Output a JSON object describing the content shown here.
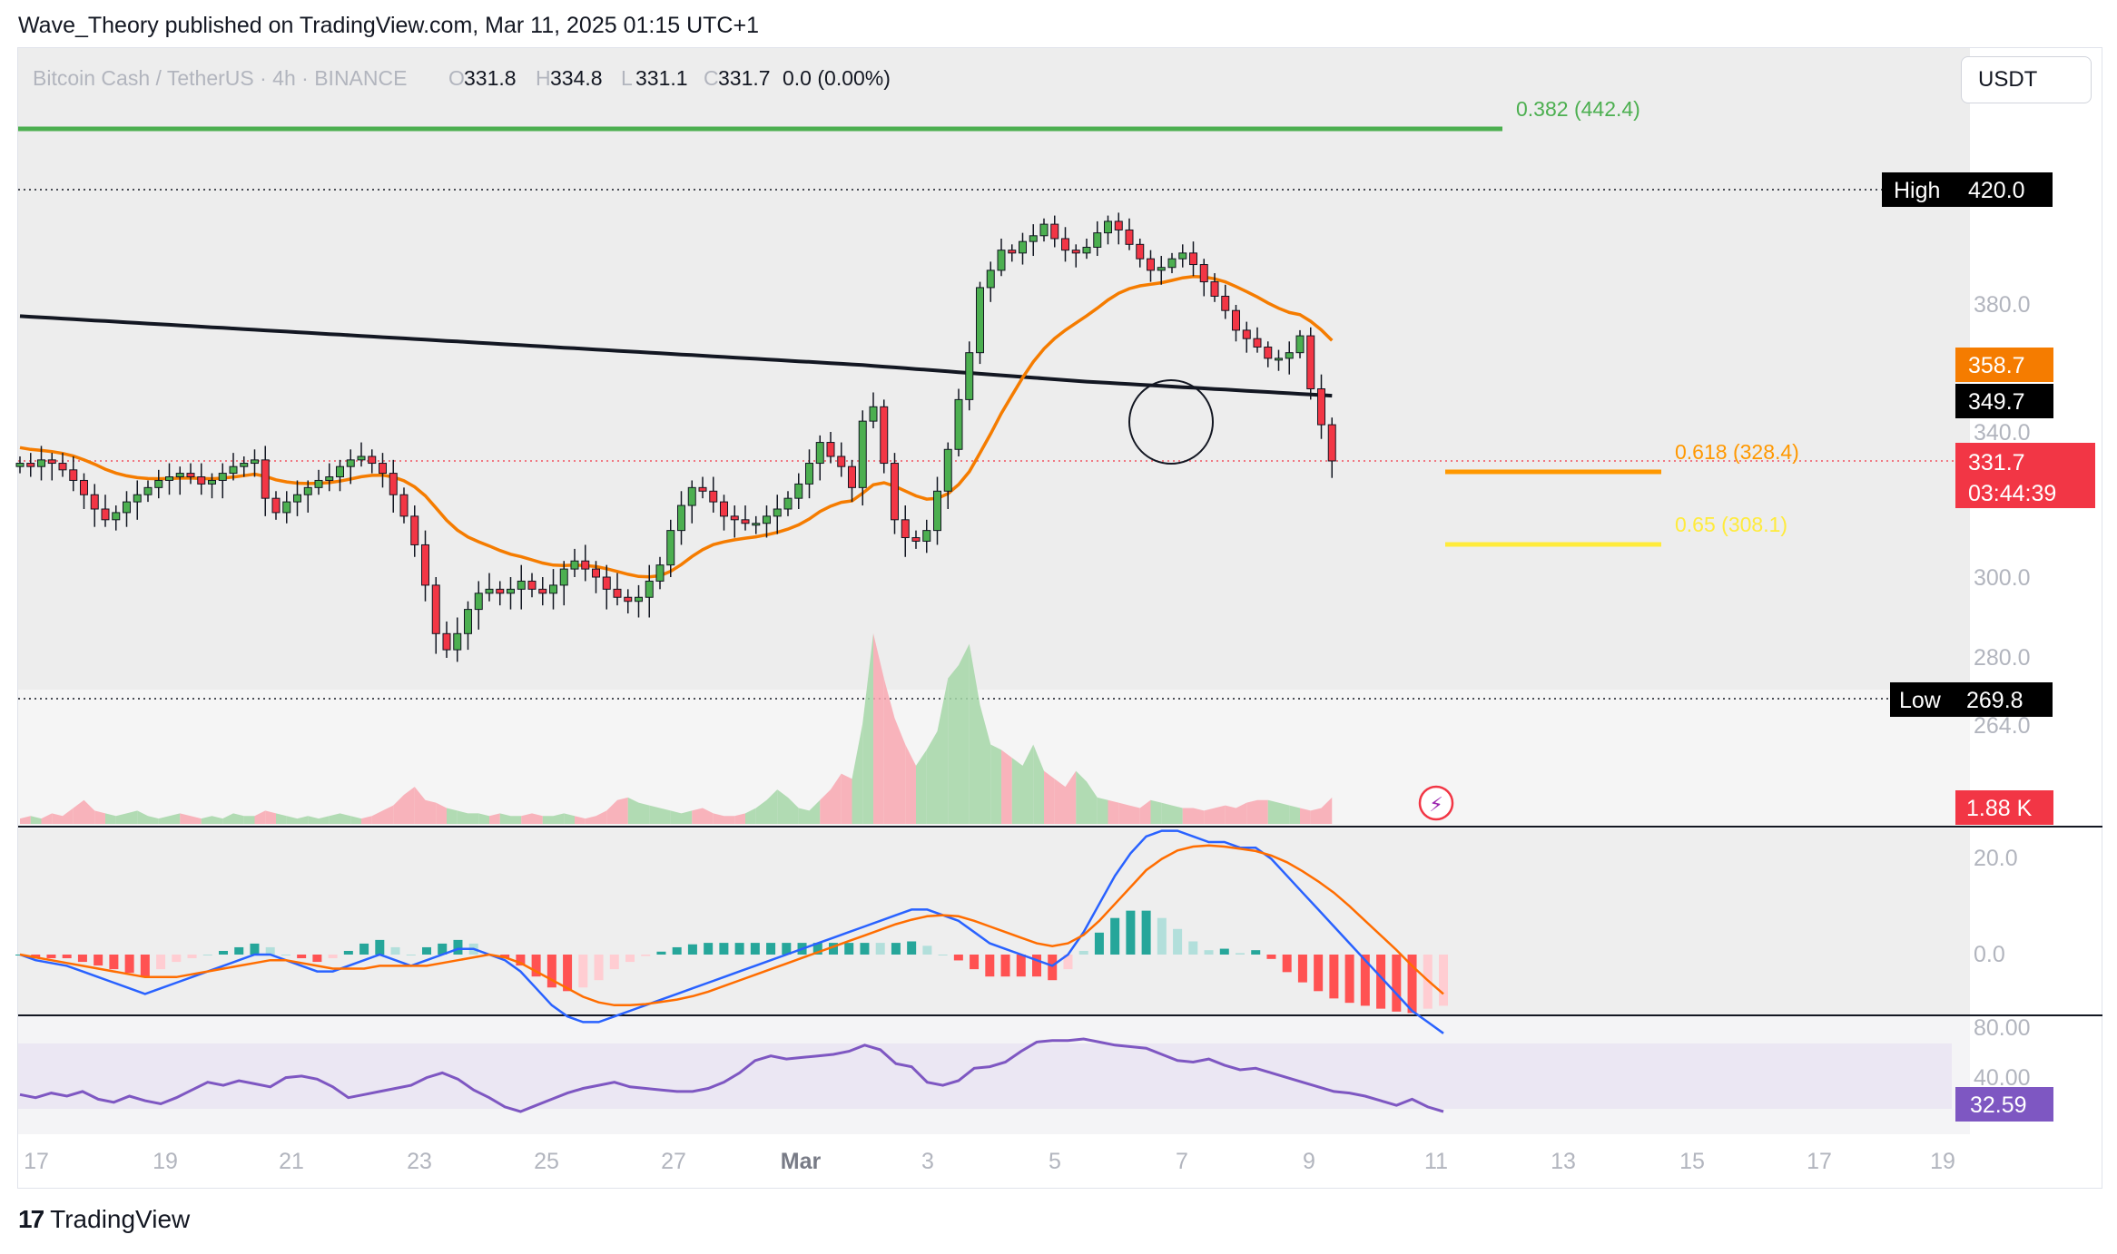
{
  "publisher": "Wave_Theory published on TradingView.com, Mar 11, 2025 01:15 UTC+1",
  "legend": {
    "symbol": "Bitcoin Cash / TetherUS · 4h · BINANCE",
    "o_label": "O",
    "o": "331.8",
    "h_label": "H",
    "h": "334.8",
    "l_label": "L",
    "l": "331.1",
    "c_label": "C",
    "c": "331.7",
    "change": "0.0 (0.00%)"
  },
  "currency": "USDT",
  "footer": {
    "mark": "17",
    "brand": "TradingView"
  },
  "colors": {
    "up": "#4caf50",
    "down": "#f23645",
    "ma_orange": "#f57c00",
    "ma_black": "#131722",
    "fib_green": "#4caf50",
    "fib_orange": "#ff9800",
    "fib_yellow": "#ffeb3b",
    "macd_line": "#2962ff",
    "signal_line": "#ff6d00",
    "rsi_line": "#7e57c2"
  },
  "chart_data": [
    {
      "type": "candlestick",
      "y_ticks": [
        "380.0",
        "340.0",
        "300.0",
        "280.0",
        "264.0"
      ],
      "x_ticks": [
        "17",
        "19",
        "21",
        "23",
        "25",
        "27",
        "Mar",
        "3",
        "5",
        "7",
        "9",
        "11",
        "13",
        "15",
        "17",
        "19"
      ],
      "levels": [
        {
          "label": "0.382 (442.4)",
          "value": 442.4,
          "color": "#4caf50"
        },
        {
          "label": "0.618 (328.4)",
          "value": 328.4,
          "color": "#ff9800"
        },
        {
          "label": "0.65 (308.1)",
          "value": 308.1,
          "color": "#ffeb3b"
        }
      ],
      "high": {
        "label": "High",
        "value": "420.0"
      },
      "low": {
        "label": "Low",
        "value": "269.8"
      },
      "badges": [
        {
          "text": "358.7",
          "color": "#f57c00"
        },
        {
          "text": "349.7",
          "color": "#000000"
        },
        {
          "text": "331.7",
          "color": "#f23645"
        },
        {
          "text": "03:44:39",
          "color": "#f23645"
        }
      ],
      "close_series": [
        331,
        330,
        332,
        331,
        329,
        326,
        322,
        318,
        315,
        317,
        320,
        322,
        324,
        326,
        327,
        328,
        327,
        325,
        326,
        328,
        330,
        331,
        332,
        321,
        317,
        320,
        322,
        324,
        326,
        327,
        330,
        332,
        333,
        331,
        328,
        322,
        316,
        308,
        298,
        286,
        282,
        286,
        292,
        296,
        297,
        296,
        297,
        299,
        297,
        296,
        298,
        302,
        304,
        302,
        300,
        297,
        295,
        294,
        295,
        299,
        303,
        312,
        319,
        324,
        323,
        320,
        316,
        315,
        314,
        314,
        316,
        318,
        321,
        325,
        331,
        337,
        333,
        330,
        324,
        343,
        347,
        331,
        315,
        310,
        309,
        312,
        323,
        335,
        349,
        363,
        386,
        392,
        399,
        398,
        402,
        404,
        408,
        403,
        399,
        398,
        400,
        405,
        409,
        406,
        401,
        396,
        392,
        393,
        396,
        398,
        394,
        388,
        383,
        378,
        371,
        368,
        365,
        361,
        361,
        363,
        369,
        352,
        342,
        331.7
      ],
      "volume_label": "1.88 K",
      "volume_series": [
        2,
        3,
        2,
        4,
        3,
        6,
        9,
        5,
        4,
        3,
        4,
        5,
        3,
        2,
        3,
        4,
        3,
        2,
        3,
        2,
        4,
        3,
        3,
        5,
        4,
        3,
        2,
        3,
        2,
        3,
        4,
        3,
        2,
        3,
        5,
        7,
        11,
        14,
        9,
        8,
        6,
        5,
        4,
        4,
        3,
        4,
        3,
        3,
        4,
        3,
        3,
        4,
        3,
        2,
        3,
        5,
        9,
        10,
        8,
        7,
        6,
        5,
        4,
        5,
        6,
        4,
        3,
        3,
        4,
        6,
        9,
        13,
        10,
        6,
        5,
        9,
        13,
        19,
        17,
        38,
        72,
        55,
        40,
        30,
        22,
        28,
        35,
        55,
        60,
        68,
        45,
        30,
        28,
        25,
        22,
        30,
        20,
        17,
        14,
        20,
        16,
        10,
        9,
        8,
        7,
        6,
        9,
        8,
        7,
        6,
        6,
        5,
        6,
        7,
        6,
        8,
        9,
        9,
        8,
        7,
        6,
        5,
        6,
        10
      ]
    },
    {
      "type": "line",
      "name": "MACD",
      "y_ticks": [
        "20.0",
        "0.0"
      ],
      "macd": [
        0,
        -1,
        -1.5,
        -2,
        -3,
        -4,
        -5,
        -6,
        -7,
        -6,
        -5,
        -4,
        -3,
        -2,
        -1,
        0,
        0,
        -1,
        -2,
        -3,
        -3,
        -2,
        -1,
        0,
        -1,
        -2,
        -1,
        0,
        1,
        1,
        0,
        -1,
        -3,
        -6,
        -9,
        -11,
        -12,
        -12,
        -11,
        -10,
        -9,
        -8,
        -7,
        -6,
        -5,
        -4,
        -3,
        -2,
        -1,
        0,
        1,
        2,
        3,
        4,
        5,
        6,
        7,
        8,
        8,
        7,
        6,
        4,
        2,
        1,
        0,
        -1,
        -2,
        0,
        4,
        9,
        14,
        18,
        21,
        22,
        22,
        21,
        20,
        20,
        19,
        19,
        17,
        14,
        11,
        8,
        5,
        2,
        -1,
        -4,
        -7,
        -10,
        -12,
        -14
      ],
      "signal": [
        0,
        -0.5,
        -1,
        -1.5,
        -2,
        -2.5,
        -3,
        -3.5,
        -4,
        -4,
        -4,
        -3.5,
        -3,
        -2.5,
        -2,
        -1.5,
        -1,
        -1,
        -1.5,
        -2,
        -2.5,
        -2.5,
        -2.5,
        -2,
        -2,
        -2,
        -2,
        -1.5,
        -1,
        -0.5,
        0,
        -0.5,
        -1.5,
        -3,
        -4.5,
        -6,
        -7.5,
        -8.5,
        -9,
        -9,
        -8.8,
        -8.4,
        -8,
        -7.4,
        -6.6,
        -5.6,
        -4.6,
        -3.6,
        -2.6,
        -1.6,
        -0.6,
        0.4,
        1.4,
        2.4,
        3.4,
        4.4,
        5.4,
        6.2,
        6.8,
        7,
        6.8,
        6,
        5,
        4,
        3,
        2,
        1.5,
        2,
        3.5,
        6,
        9,
        12,
        15,
        17,
        18.5,
        19.2,
        19.4,
        19.2,
        18.8,
        18.4,
        17.6,
        16.4,
        14.8,
        13,
        11,
        8.6,
        6,
        3.4,
        0.8,
        -2,
        -4.6,
        -7
      ]
    },
    {
      "type": "line",
      "name": "RSI",
      "y_ticks": [
        "80.00",
        "40.00"
      ],
      "value_label": "32.59",
      "rsi": [
        44,
        42,
        45,
        43,
        46,
        41,
        39,
        43,
        40,
        38,
        42,
        47,
        52,
        50,
        53,
        51,
        49,
        55,
        56,
        54,
        49,
        42,
        44,
        46,
        48,
        50,
        55,
        58,
        54,
        47,
        42,
        36,
        33,
        37,
        41,
        45,
        48,
        50,
        52,
        49,
        48,
        47,
        46,
        46,
        48,
        52,
        58,
        66,
        69,
        67,
        68,
        69,
        70,
        72,
        76,
        73,
        64,
        62,
        52,
        50,
        53,
        61,
        62,
        65,
        72,
        78,
        79,
        79,
        80,
        78,
        76,
        75,
        74,
        70,
        66,
        65,
        67,
        63,
        60,
        61,
        58,
        55,
        52,
        49,
        46,
        45,
        43,
        40,
        37,
        41,
        36,
        33
      ]
    }
  ]
}
